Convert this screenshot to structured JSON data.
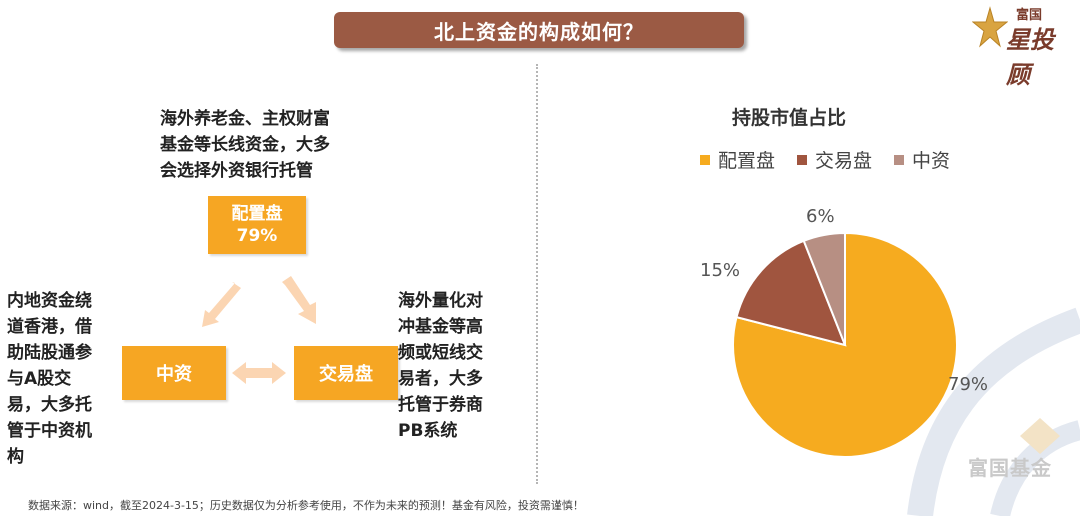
{
  "title": "北上资金的构成如何？",
  "logo": {
    "line1": "富国",
    "line2": "星投顾"
  },
  "left_panel": {
    "config_desc": [
      "海外养老金、主权财富",
      "基金等长线资金，大多",
      "会选择外资银行托管"
    ],
    "config_box": {
      "label": "配置盘",
      "value": "79%"
    },
    "china_box": {
      "label": "中资"
    },
    "trade_box": {
      "label": "交易盘"
    },
    "china_desc": [
      "内地资金绕",
      "道香港，借",
      "助陆股通参",
      "与A股交",
      "易，大多托",
      "管于中资机",
      "构"
    ],
    "trade_desc": [
      "海外量化对",
      "冲基金等高",
      "频或短线交",
      "易者，大多",
      "托管于券商",
      "PB系统"
    ]
  },
  "chart_data": {
    "type": "pie",
    "title": "持股市值占比",
    "categories": [
      "配置盘",
      "交易盘",
      "中资"
    ],
    "values": [
      79,
      15,
      6
    ],
    "labels": [
      "79%",
      "15%",
      "6%"
    ],
    "colors": [
      "#f6ab1f",
      "#a0553f",
      "#b78f83"
    ],
    "legend_position": "top"
  },
  "watermark": "富国基金",
  "footnote": "数据来源：wind，截至2024-3-15；历史数据仅为分析参考使用，不作为未来的预测！基金有风险，投资需谨慎！"
}
